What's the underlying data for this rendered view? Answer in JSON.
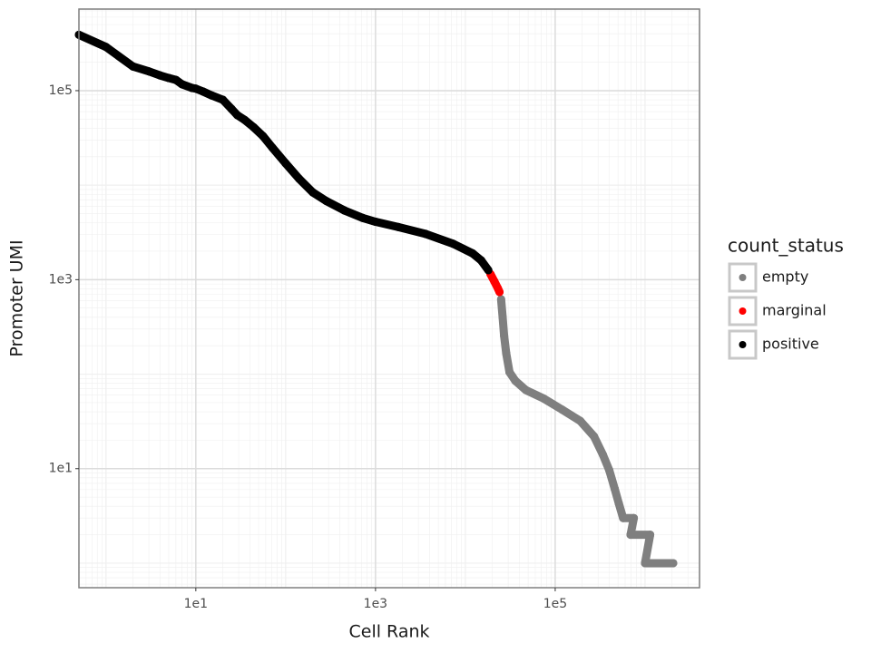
{
  "chart_data": {
    "type": "scatter",
    "x_label": "Cell Rank",
    "y_label": "Promoter UMI",
    "log_x": true,
    "log_y": true,
    "grid": true,
    "legend_title": "count_status",
    "legend_position": "right",
    "xlim": [
      0.5,
      4040000
    ],
    "ylim": [
      0.55,
      730000
    ],
    "xticks": [
      {
        "value": 10,
        "label": "1e1"
      },
      {
        "value": 1000,
        "label": "1e3"
      },
      {
        "value": 100000,
        "label": "1e5"
      }
    ],
    "yticks": [
      {
        "value": 10,
        "label": "1e1"
      },
      {
        "value": 1000,
        "label": "1e3"
      },
      {
        "value": 100000,
        "label": "1e5"
      }
    ],
    "series": [
      {
        "name": "empty",
        "color": "#7f7f7f",
        "x": [
          25000,
          26000,
          27000,
          28500,
          31000,
          36000,
          47000,
          75000,
          120000,
          190000,
          270000,
          340000,
          400000,
          460000,
          510000,
          570000,
          750000,
          690000,
          1140000,
          1000000,
          2060000
        ],
        "y": [
          620,
          400,
          255,
          166,
          105,
          85,
          68,
          55,
          42,
          32,
          22,
          14,
          9.6,
          6.1,
          4.3,
          3,
          3,
          2,
          2,
          1,
          1
        ]
      },
      {
        "name": "marginal",
        "color": "#ff0000",
        "x": [
          19000,
          21000,
          23000,
          24000
        ],
        "y": [
          1150,
          960,
          810,
          740
        ]
      },
      {
        "name": "positive",
        "color": "#000000",
        "x": [
          0.5,
          1,
          2,
          3,
          4,
          5,
          6,
          7,
          9,
          10,
          12,
          15,
          20,
          25,
          29,
          35,
          44,
          56,
          71,
          100,
          141,
          200,
          283,
          450,
          720,
          1000,
          1800,
          3600,
          7300,
          12000,
          15000,
          18000
        ],
        "y": [
          390000,
          290000,
          180000,
          160000,
          145000,
          136000,
          130000,
          117000,
          107000,
          105000,
          98000,
          89000,
          80000,
          64000,
          55000,
          49000,
          41000,
          33000,
          25000,
          17000,
          11700,
          8400,
          6800,
          5400,
          4500,
          4100,
          3600,
          3050,
          2400,
          1900,
          1600,
          1260
        ]
      }
    ]
  }
}
